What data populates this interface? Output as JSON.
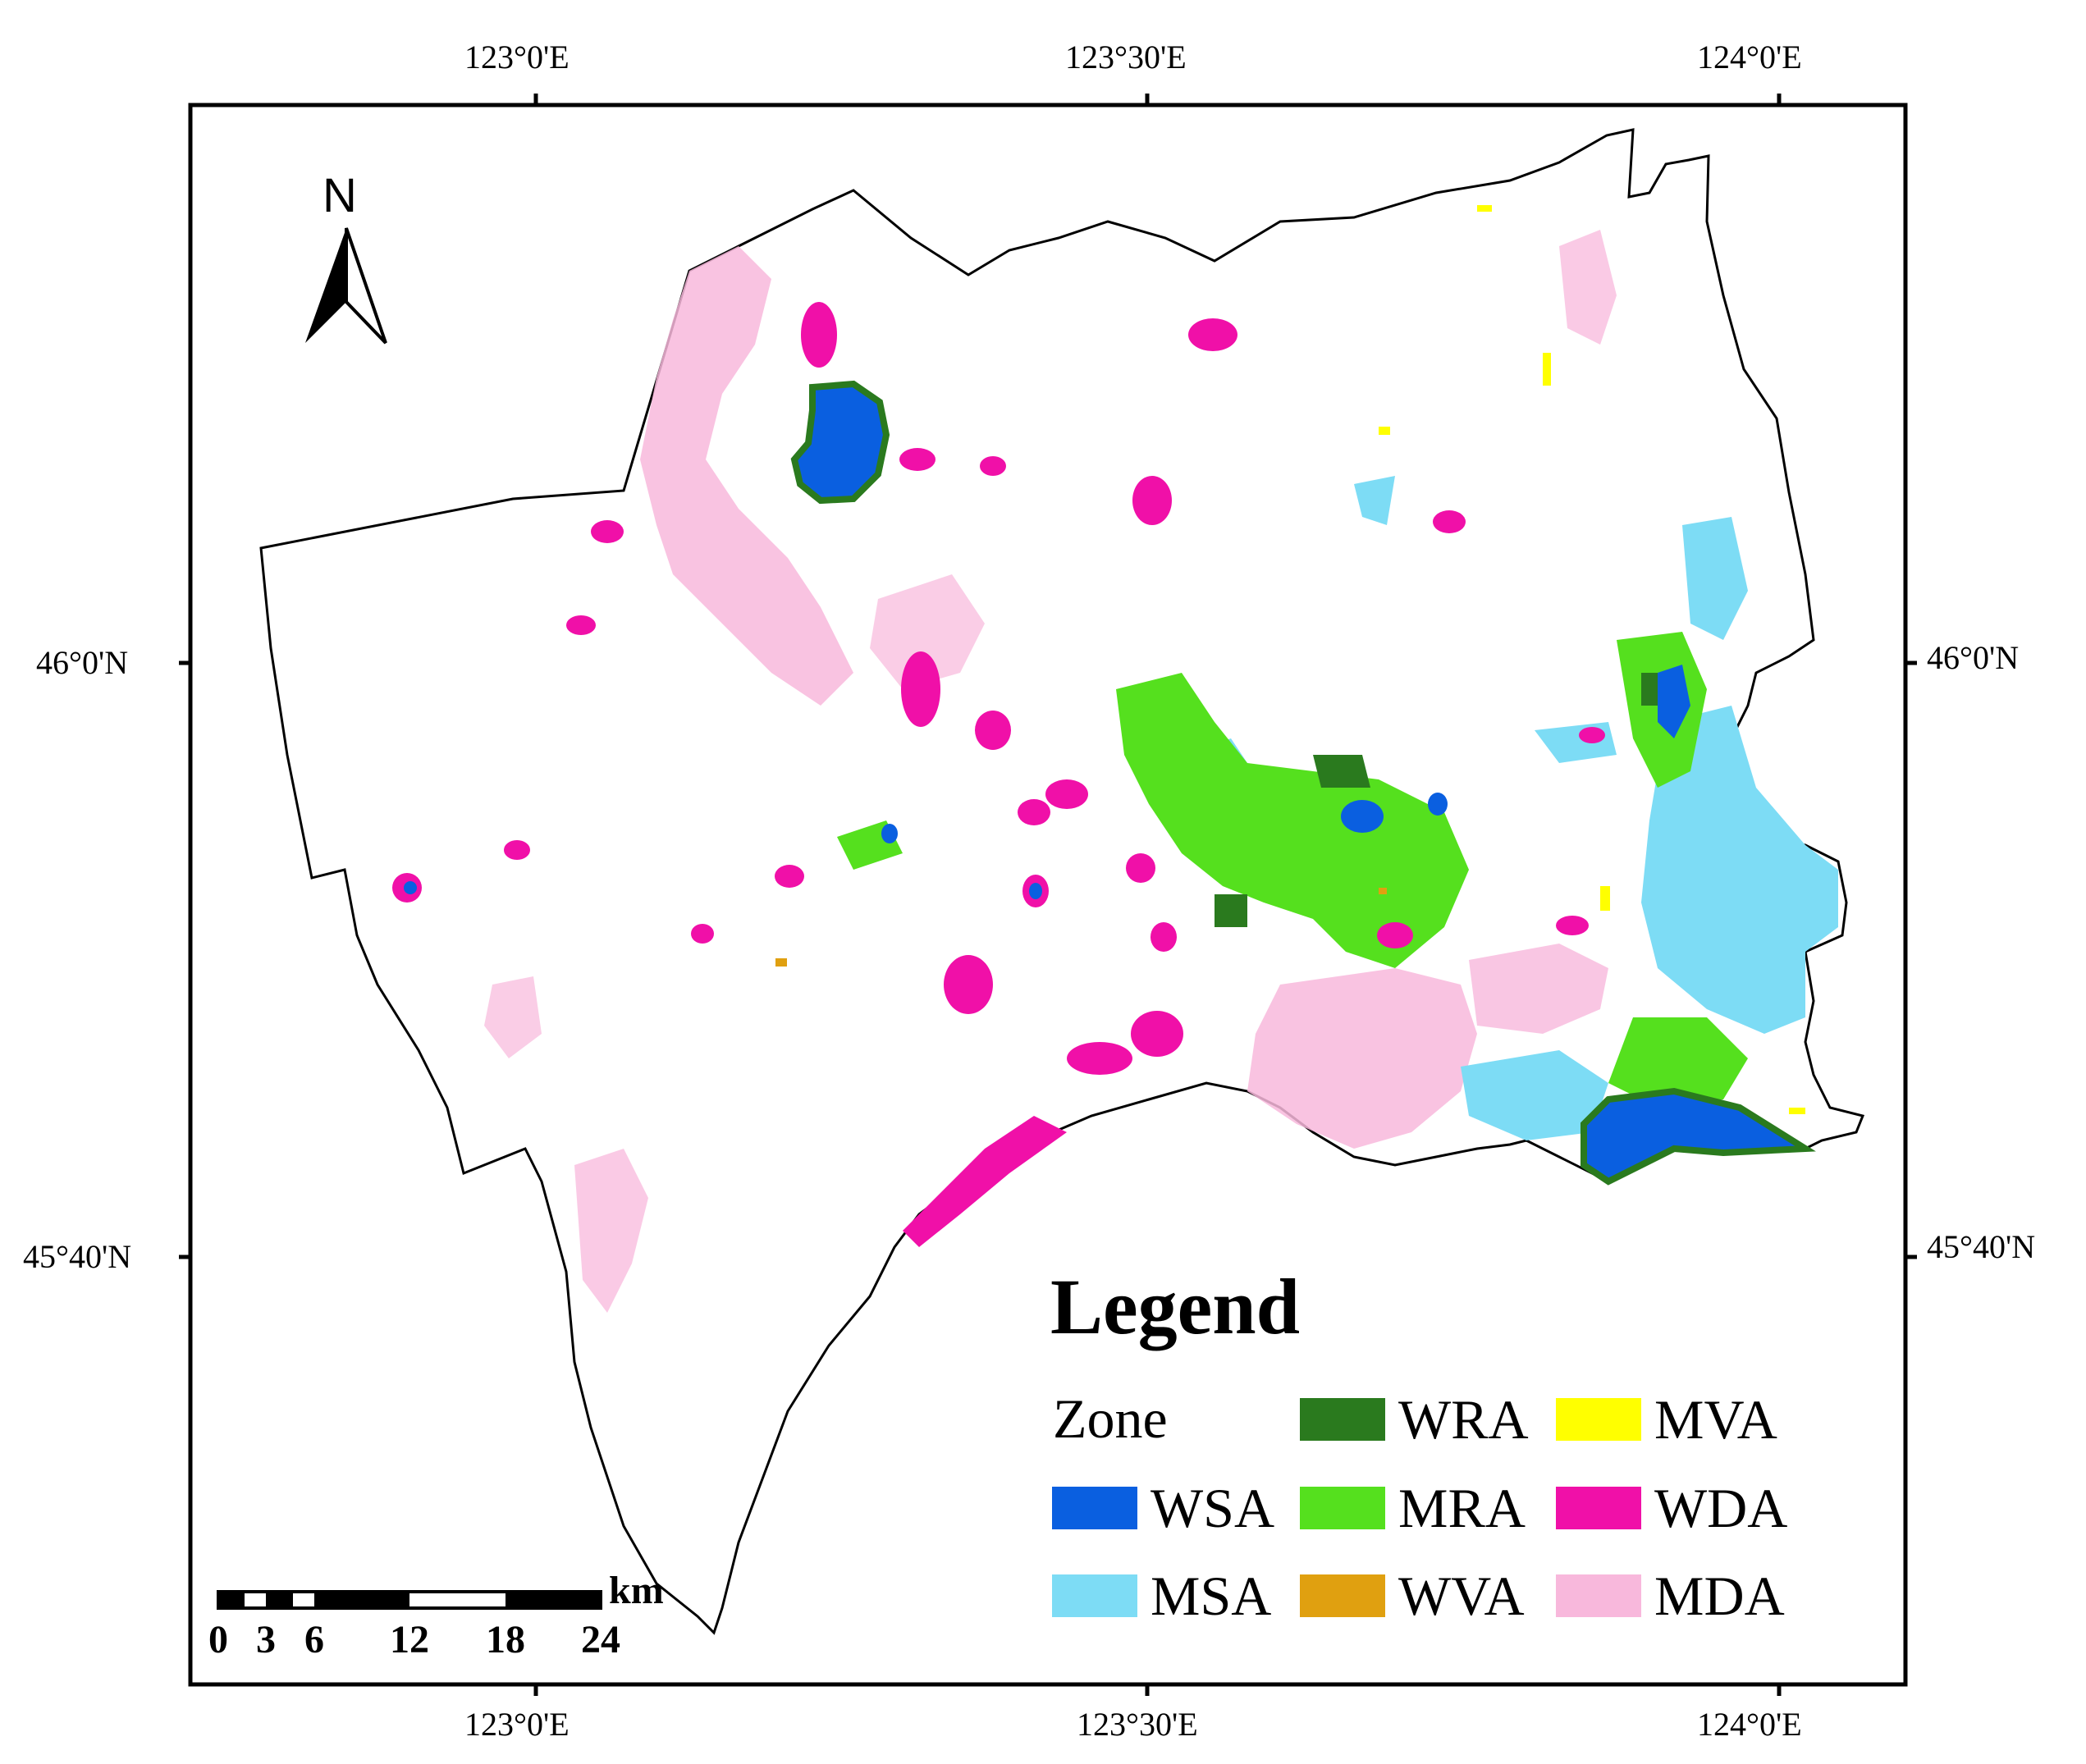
{
  "map": {
    "axes": {
      "top_ticks": [
        "123°0'E",
        "123°30'E",
        "124°0'E"
      ],
      "bottom_ticks": [
        "123°0'E",
        "123°30'E",
        "124°0'E"
      ],
      "left_ticks": [
        "46°0'N",
        "45°40'N"
      ],
      "right_ticks": [
        "46°0'N",
        "45°40'N"
      ]
    },
    "north_arrow": {
      "label": "N",
      "icon": "north-arrow-icon"
    },
    "scale_bar": {
      "unit": "km",
      "labels": [
        "0",
        "3",
        "6",
        "12",
        "18",
        "24"
      ]
    },
    "legend": {
      "title": "Legend",
      "zone_label": "Zone",
      "items": [
        {
          "label": "WSA",
          "color": "#0a5fe0"
        },
        {
          "label": "MSA",
          "color": "#7ddcf5"
        },
        {
          "label": "WRA",
          "color": "#2a7a1e"
        },
        {
          "label": "MRA",
          "color": "#55e01e"
        },
        {
          "label": "WVA",
          "color": "#e0a010"
        },
        {
          "label": "MVA",
          "color": "#ffff00"
        },
        {
          "label": "WDA",
          "color": "#f010a8"
        },
        {
          "label": "MDA",
          "color": "#f8b8dc"
        }
      ]
    }
  }
}
